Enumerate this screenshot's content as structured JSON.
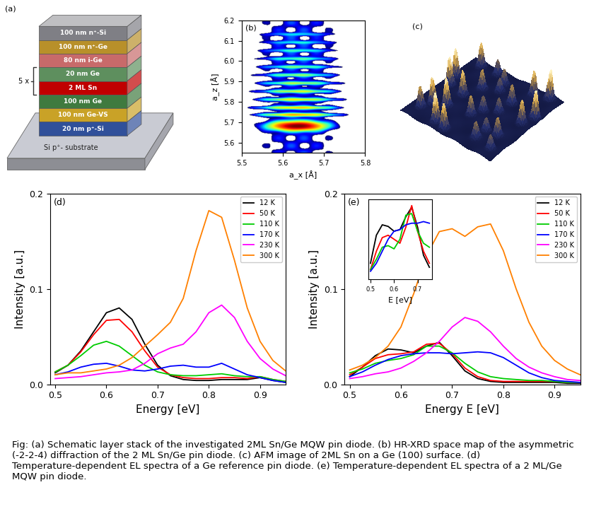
{
  "figure": {
    "caption": "Fig: (a) Schematic layer stack of the investigated 2ML Sn/Ge MQW pin diode. (b) HR-XRD space map of the asymmetric (-2-2-4) diffraction of the 2 ML Sn/Ge pin diode. (c) AFM image of 2ML Sn on a Ge (100) surface. (d) Temperature-dependent EL spectra of a Ge reference pin diode. (e) Temperature-dependent EL spectra of a 2 ML/Ge MQW pin diode.",
    "panel_a": {
      "label": "(a)",
      "layers": [
        {
          "text": "100 nm n⁺-Si",
          "color": "#7f7f85"
        },
        {
          "text": "100 nm n⁺-Ge",
          "color": "#b8902a"
        },
        {
          "text": "80 nm i-Ge",
          "color": "#c86a6a"
        },
        {
          "text": "20 nm Ge",
          "color": "#5e8f5e"
        },
        {
          "text": "2 ML Sn",
          "color": "#c00000"
        },
        {
          "text": "100 nm Ge",
          "color": "#3f7a3f"
        },
        {
          "text": "100 nm Ge-VS",
          "color": "#c9a227"
        },
        {
          "text": "20 nm p⁺-Si",
          "color": "#30509a"
        }
      ],
      "repeat": {
        "label": "5 x",
        "first": 3,
        "last": 4
      },
      "substrate": {
        "text": "Si p⁺- substrate",
        "color": "#c9cbd3"
      }
    },
    "panel_c": {
      "label": "(c)",
      "type": "afm"
    }
  },
  "chart_data": [
    {
      "type": "heatmap",
      "label": "(b)",
      "xlabel": "a_x [Å]",
      "ylabel": "a_z [Å]",
      "xlim": [
        5.5,
        5.8
      ],
      "ylim": [
        5.55,
        6.2
      ],
      "xticks": [
        5.5,
        5.6,
        5.7,
        5.8
      ],
      "yticks": [
        5.6,
        5.7,
        5.8,
        5.9,
        6.0,
        6.1,
        6.2
      ],
      "peak": [
        5.635,
        5.68
      ],
      "fringes": [
        5.735,
        5.77,
        5.81,
        5.85,
        5.89,
        5.93,
        5.97,
        6.01,
        6.05,
        6.09,
        6.13
      ]
    },
    {
      "type": "line",
      "label": "(d)",
      "xlabel": "Energy [eV]",
      "ylabel": "Intensity [a.u.]",
      "xlim": [
        0.49,
        0.95
      ],
      "ylim": [
        0,
        0.2
      ],
      "xticks": [
        0.5,
        0.6,
        0.7,
        0.8,
        0.9
      ],
      "yticks": [
        0.0,
        0.1,
        0.2
      ],
      "legend": "upper right",
      "x": [
        0.5,
        0.525,
        0.55,
        0.575,
        0.6,
        0.625,
        0.65,
        0.675,
        0.7,
        0.725,
        0.75,
        0.775,
        0.8,
        0.825,
        0.85,
        0.875,
        0.9,
        0.925,
        0.95
      ],
      "series": [
        {
          "name": "12 K",
          "color": "#000000",
          "values": [
            0.012,
            0.02,
            0.035,
            0.055,
            0.075,
            0.08,
            0.068,
            0.042,
            0.02,
            0.009,
            0.005,
            0.004,
            0.004,
            0.005,
            0.005,
            0.005,
            0.007,
            0.004,
            0.002
          ]
        },
        {
          "name": "50 K",
          "color": "#ff0000",
          "values": [
            0.013,
            0.02,
            0.034,
            0.052,
            0.067,
            0.068,
            0.055,
            0.035,
            0.018,
            0.01,
            0.007,
            0.006,
            0.006,
            0.007,
            0.007,
            0.006,
            0.008,
            0.005,
            0.003
          ]
        },
        {
          "name": "110 K",
          "color": "#00cc00",
          "values": [
            0.013,
            0.02,
            0.03,
            0.041,
            0.045,
            0.04,
            0.03,
            0.02,
            0.013,
            0.01,
            0.009,
            0.009,
            0.01,
            0.011,
            0.009,
            0.008,
            0.008,
            0.005,
            0.003
          ]
        },
        {
          "name": "170 K",
          "color": "#0000ff",
          "values": [
            0.01,
            0.013,
            0.018,
            0.021,
            0.022,
            0.019,
            0.015,
            0.014,
            0.016,
            0.019,
            0.02,
            0.018,
            0.018,
            0.022,
            0.016,
            0.01,
            0.007,
            0.004,
            0.002
          ]
        },
        {
          "name": "230 K",
          "color": "#ff00ff",
          "values": [
            0.006,
            0.007,
            0.008,
            0.01,
            0.012,
            0.013,
            0.015,
            0.022,
            0.032,
            0.038,
            0.042,
            0.055,
            0.075,
            0.083,
            0.07,
            0.045,
            0.027,
            0.016,
            0.009
          ]
        },
        {
          "name": "300 K",
          "color": "#ff8000",
          "values": [
            0.01,
            0.012,
            0.012,
            0.014,
            0.016,
            0.02,
            0.028,
            0.04,
            0.052,
            0.065,
            0.09,
            0.14,
            0.182,
            0.175,
            0.13,
            0.08,
            0.045,
            0.025,
            0.014
          ]
        }
      ]
    },
    {
      "type": "line",
      "label": "(e)",
      "xlabel": "Energy E [eV]",
      "ylabel": "Intensity [a.u.]",
      "xlim": [
        0.49,
        0.95
      ],
      "ylim": [
        0,
        0.2
      ],
      "xticks": [
        0.5,
        0.6,
        0.7,
        0.8,
        0.9
      ],
      "yticks": [
        0.0,
        0.1,
        0.2
      ],
      "legend": "upper right",
      "x": [
        0.5,
        0.525,
        0.55,
        0.575,
        0.6,
        0.625,
        0.65,
        0.675,
        0.7,
        0.725,
        0.75,
        0.775,
        0.8,
        0.825,
        0.85,
        0.875,
        0.9,
        0.925,
        0.95
      ],
      "series": [
        {
          "name": "12 K",
          "color": "#000000",
          "values": [
            0.008,
            0.018,
            0.03,
            0.037,
            0.036,
            0.033,
            0.04,
            0.044,
            0.03,
            0.014,
            0.006,
            0.003,
            0.002,
            0.002,
            0.002,
            0.002,
            0.002,
            0.001,
            0.001
          ]
        },
        {
          "name": "50 K",
          "color": "#ff0000",
          "values": [
            0.01,
            0.018,
            0.027,
            0.031,
            0.032,
            0.034,
            0.042,
            0.043,
            0.032,
            0.017,
            0.008,
            0.004,
            0.003,
            0.003,
            0.003,
            0.003,
            0.003,
            0.002,
            0.002
          ]
        },
        {
          "name": "110 K",
          "color": "#00cc00",
          "values": [
            0.012,
            0.016,
            0.022,
            0.025,
            0.027,
            0.031,
            0.04,
            0.04,
            0.033,
            0.022,
            0.013,
            0.008,
            0.006,
            0.005,
            0.004,
            0.004,
            0.003,
            0.002,
            0.002
          ]
        },
        {
          "name": "170 K",
          "color": "#0000ff",
          "values": [
            0.008,
            0.013,
            0.02,
            0.026,
            0.03,
            0.032,
            0.033,
            0.033,
            0.032,
            0.033,
            0.034,
            0.033,
            0.028,
            0.02,
            0.012,
            0.007,
            0.004,
            0.003,
            0.002
          ]
        },
        {
          "name": "230 K",
          "color": "#ff00ff",
          "values": [
            0.006,
            0.008,
            0.011,
            0.013,
            0.017,
            0.024,
            0.033,
            0.045,
            0.06,
            0.07,
            0.066,
            0.055,
            0.04,
            0.027,
            0.018,
            0.012,
            0.008,
            0.005,
            0.004
          ]
        },
        {
          "name": "300 K",
          "color": "#ff8000",
          "values": [
            0.015,
            0.02,
            0.028,
            0.04,
            0.06,
            0.095,
            0.135,
            0.16,
            0.163,
            0.155,
            0.165,
            0.168,
            0.14,
            0.1,
            0.065,
            0.04,
            0.025,
            0.016,
            0.01
          ]
        }
      ]
    },
    {
      "type": "line",
      "xlabel": "E [eV]",
      "xlim": [
        0.49,
        0.76
      ],
      "ylim": [
        0,
        1
      ],
      "xticks": [
        0.5,
        0.6,
        0.7
      ],
      "tick_labels": "x",
      "x": [
        0.5,
        0.525,
        0.55,
        0.575,
        0.6,
        0.625,
        0.65,
        0.675,
        0.7,
        0.725,
        0.75
      ],
      "series": [
        {
          "color": "#000000",
          "values": [
            0.2,
            0.55,
            0.68,
            0.66,
            0.6,
            0.62,
            0.78,
            0.9,
            0.65,
            0.3,
            0.15
          ]
        },
        {
          "color": "#ff0000",
          "values": [
            0.12,
            0.35,
            0.52,
            0.55,
            0.5,
            0.45,
            0.65,
            0.92,
            0.6,
            0.35,
            0.2
          ]
        },
        {
          "color": "#00cc00",
          "values": [
            0.12,
            0.25,
            0.4,
            0.42,
            0.38,
            0.5,
            0.8,
            0.82,
            0.6,
            0.45,
            0.4
          ]
        },
        {
          "color": "#0000ff",
          "values": [
            0.1,
            0.2,
            0.35,
            0.5,
            0.6,
            0.62,
            0.68,
            0.7,
            0.7,
            0.72,
            0.7
          ]
        }
      ]
    }
  ]
}
